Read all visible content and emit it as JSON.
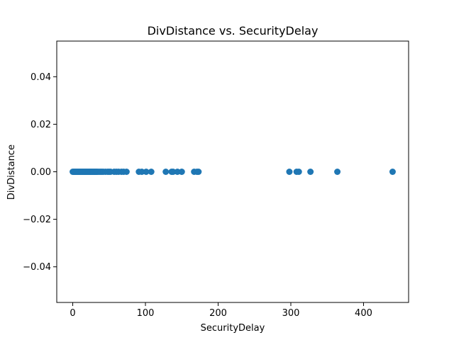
{
  "chart_data": {
    "type": "scatter",
    "title": "DivDistance vs. SecurityDelay",
    "xlabel": "SecurityDelay",
    "ylabel": "DivDistance",
    "xlim": [
      -22,
      462
    ],
    "ylim": [
      -0.055,
      0.055
    ],
    "xticks": [
      0,
      100,
      200,
      300,
      400
    ],
    "xtick_labels": [
      "0",
      "100",
      "200",
      "300",
      "400"
    ],
    "yticks": [
      -0.04,
      -0.02,
      0.0,
      0.02,
      0.04
    ],
    "ytick_labels": [
      "−0.04",
      "−0.02",
      "0.00",
      "0.02",
      "0.04"
    ],
    "grid": false,
    "legend": "none",
    "marker_color": "#1f77b4",
    "series": [
      {
        "x": [
          0,
          1,
          2,
          3,
          4,
          5,
          6,
          7,
          8,
          9,
          10,
          11,
          12,
          13,
          14,
          15,
          16,
          17,
          18,
          19,
          20,
          21,
          22,
          23,
          24,
          25,
          26,
          27,
          28,
          29,
          30,
          31,
          32,
          33,
          34,
          36,
          38,
          40,
          42,
          45,
          48,
          50,
          52,
          57,
          60,
          63,
          67,
          70,
          74,
          91,
          95,
          101,
          108,
          128,
          136,
          138,
          144,
          150,
          167,
          171,
          173,
          298,
          308,
          311,
          327,
          364,
          440
        ],
        "y": [
          0,
          0,
          0,
          0,
          0,
          0,
          0,
          0,
          0,
          0,
          0,
          0,
          0,
          0,
          0,
          0,
          0,
          0,
          0,
          0,
          0,
          0,
          0,
          0,
          0,
          0,
          0,
          0,
          0,
          0,
          0,
          0,
          0,
          0,
          0,
          0,
          0,
          0,
          0,
          0,
          0,
          0,
          0,
          0,
          0,
          0,
          0,
          0,
          0,
          0,
          0,
          0,
          0,
          0,
          0,
          0,
          0,
          0,
          0,
          0,
          0,
          0,
          0,
          0,
          0,
          0,
          0
        ]
      }
    ]
  }
}
